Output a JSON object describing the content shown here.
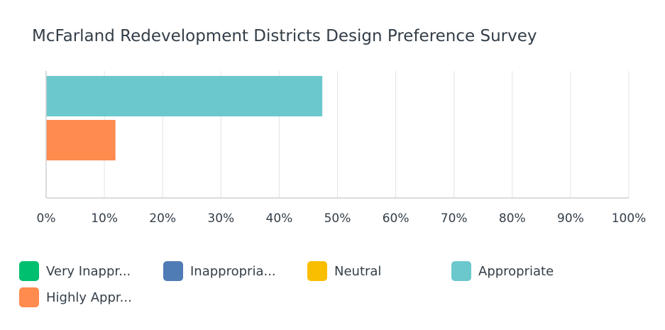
{
  "chart_data": {
    "type": "bar",
    "orientation": "horizontal",
    "title": "McFarland Redevelopment Districts Design Preference Survey",
    "xlabel": "",
    "ylabel": "",
    "xlim": [
      0,
      100
    ],
    "x_tick_labels": [
      "0%",
      "10%",
      "20%",
      "30%",
      "40%",
      "50%",
      "60%",
      "70%",
      "80%",
      "90%",
      "100%"
    ],
    "grid": true,
    "legend_position": "bottom",
    "series": [
      {
        "name": "Very Inappr...",
        "value": 0,
        "color": "#00bf6f"
      },
      {
        "name": "Inappropria...",
        "value": 0,
        "color": "#507cb6"
      },
      {
        "name": "Neutral",
        "value": 0,
        "color": "#f9be00"
      },
      {
        "name": "Appropriate",
        "value": 47.4,
        "color": "#6bc8cd"
      },
      {
        "name": "Highly Appr...",
        "value": 11.9,
        "color": "#ff8b4f"
      }
    ]
  }
}
